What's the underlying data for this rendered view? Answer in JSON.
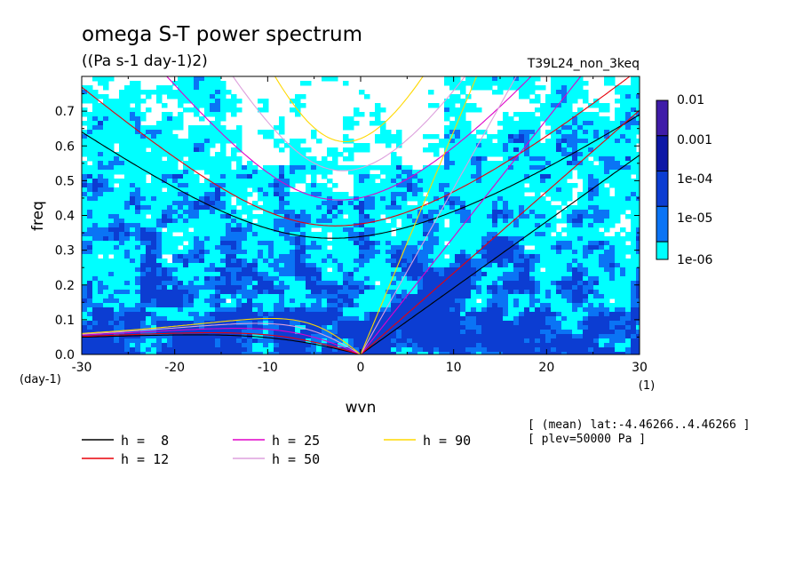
{
  "title": "omega S-T power spectrum",
  "subtitle": "((Pa s-1 day-1)2)",
  "run_label": "T39L24_non_3keq",
  "info_line1": "[ (mean) lat:-4.46266..4.46266 ]",
  "info_line2": "[ plev=50000 Pa ]",
  "colors": {
    "level1": "#00ffff",
    "level2": "#0a74f5",
    "level3": "#0c3dd2",
    "level4": "#0d17a6",
    "level5": "#3f1ba8",
    "h8": "#000000",
    "h12": "#e8000a",
    "h25": "#e000c8",
    "h50": "#dda0dd",
    "h90": "#ffd800"
  },
  "chart_data": {
    "type": "heatmap",
    "title": "omega S-T power spectrum",
    "subtitle": "((Pa s-1 day-1)2)",
    "xlabel": "wvn",
    "ylabel": "freq",
    "x_unit": "(1)",
    "y_unit": "(day-1)",
    "xlim": [
      -30,
      30
    ],
    "ylim": [
      0,
      0.8
    ],
    "x_ticks": [
      "-30",
      "-20",
      "-10",
      "0",
      "10",
      "20",
      "30"
    ],
    "y_ticks": [
      "0.0",
      "0.1",
      "0.2",
      "0.3",
      "0.4",
      "0.5",
      "0.6",
      "0.7"
    ],
    "grid": false,
    "colorbar": {
      "labels": [
        "0.01",
        "0.001",
        "1e-04",
        "1e-05",
        "1e-06"
      ],
      "levels": [
        1e-06,
        1e-05,
        0.0001,
        0.001,
        0.01
      ]
    },
    "legend": [
      {
        "label": "h =  8",
        "h": 8,
        "color": "#000000"
      },
      {
        "label": "h = 12",
        "h": 12,
        "color": "#e8000a"
      },
      {
        "label": "h = 25",
        "h": 25,
        "color": "#e000c8"
      },
      {
        "label": "h = 50",
        "h": 50,
        "color": "#dda0dd"
      },
      {
        "label": "h = 90",
        "h": 90,
        "color": "#ffd800"
      }
    ],
    "dispersion_curves": [
      "kelvin",
      "inertia_gravity_n1",
      "rossby_n1"
    ],
    "equivalent_depths_m": [
      8,
      12,
      25,
      50,
      90
    ]
  }
}
